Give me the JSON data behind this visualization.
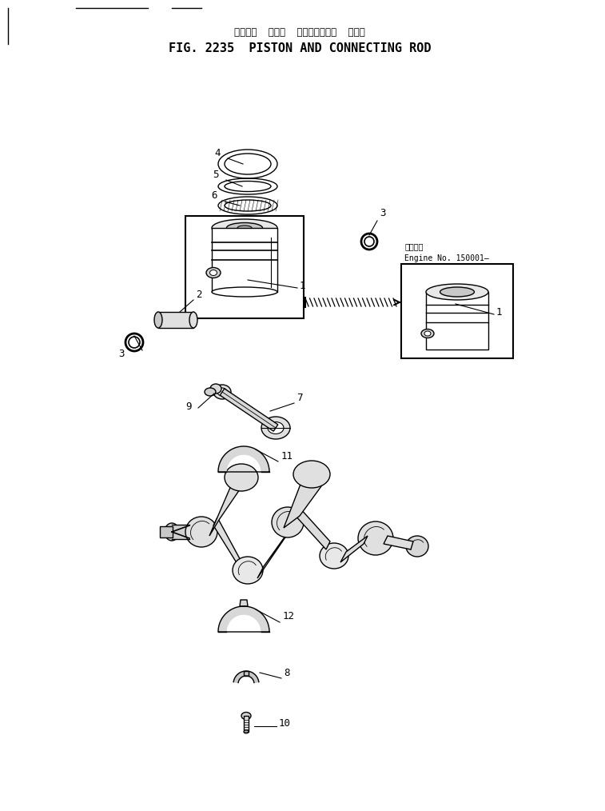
{
  "title_japanese": "ピストン  および  コネクティング  ロッド",
  "title_english": "FIG. 2235  PISTON AND CONNECTING ROD",
  "engine_note_jp": "適用号機",
  "engine_note_en": "Engine No. 150001―",
  "bg_color": "#ffffff",
  "lc": "#000000",
  "header_lines": [
    [
      10,
      55,
      10,
      10
    ],
    [
      95,
      10,
      185,
      10
    ],
    [
      215,
      10,
      252,
      10
    ]
  ]
}
